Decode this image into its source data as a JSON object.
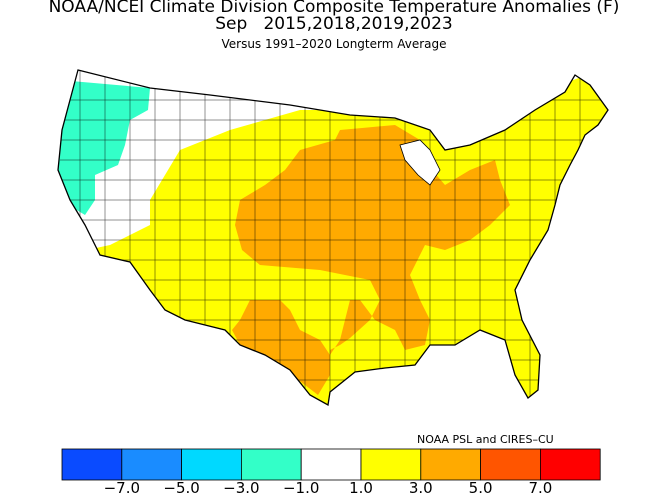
{
  "title": {
    "line1": "NOAA/NCEI Climate Division Composite Temperature Anomalies (F)",
    "line2": "Sep   2015,2018,2019,2023",
    "line3": "Versus 1991–2020 Longterm Average"
  },
  "credit": "NOAA PSL and CIRES–CU",
  "legend": {
    "bins": [
      {
        "range": [
          -9,
          -7
        ],
        "color": "#0a4bff"
      },
      {
        "range": [
          -7,
          -5
        ],
        "color": "#1a8cff"
      },
      {
        "range": [
          -5,
          -3
        ],
        "color": "#00d9ff"
      },
      {
        "range": [
          -3,
          -1
        ],
        "color": "#33ffc8"
      },
      {
        "range": [
          -1,
          1
        ],
        "color": "#ffffff"
      },
      {
        "range": [
          1,
          3
        ],
        "color": "#ffff00"
      },
      {
        "range": [
          3,
          5
        ],
        "color": "#ffaa00"
      },
      {
        "range": [
          5,
          7
        ],
        "color": "#ff5500"
      },
      {
        "range": [
          7,
          9
        ],
        "color": "#ff0000"
      }
    ],
    "tick_labels": [
      "−7.0",
      "−5.0",
      "−3.0",
      "−1.0",
      "1.0",
      "3.0",
      "5.0",
      "7.0"
    ]
  },
  "map_regions": [
    {
      "name": "pacific-northwest-coast",
      "category": "-3 to -1",
      "color": "#33ffc8"
    },
    {
      "name": "northern-rockies-great-basin",
      "category": "-1 to 1",
      "color": "#ffffff"
    },
    {
      "name": "west-southwest-east",
      "category": "1 to 3",
      "color": "#ffff00"
    },
    {
      "name": "central-plains-midwest-texas-appalachia",
      "category": "3 to 5",
      "color": "#ffaa00"
    }
  ]
}
